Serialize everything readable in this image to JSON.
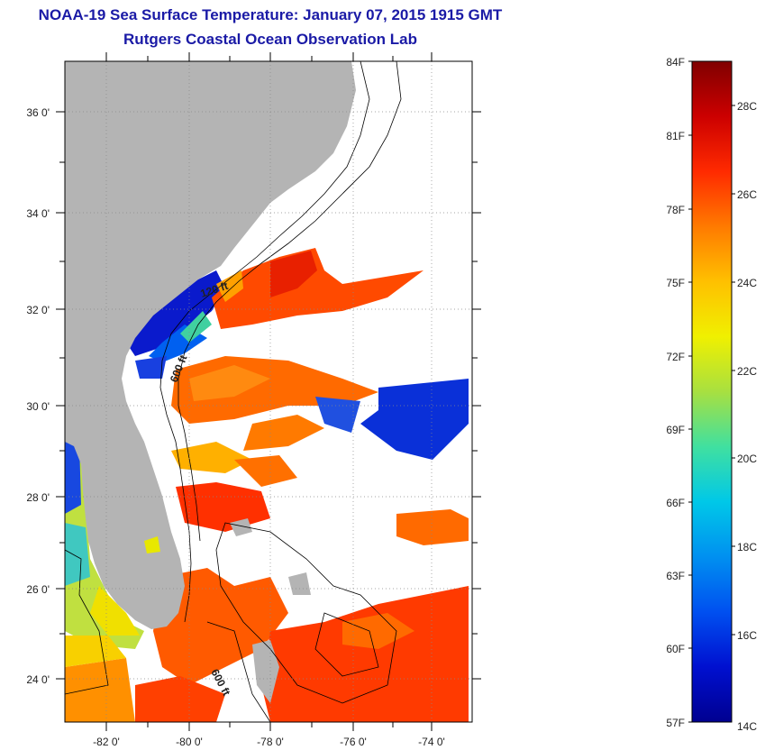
{
  "header": {
    "title": "NOAA-19 Sea Surface Temperature:  January 07, 2015 1915 GMT",
    "subtitle": "Rutgers Coastal Ocean Observation Lab"
  },
  "map": {
    "lat_labels": [
      "36 0'",
      "34 0'",
      "32 0'",
      "30 0'",
      "28 0'",
      "26 0'",
      "24 0'"
    ],
    "lon_labels": [
      "-82 0'",
      "-80 0'",
      "-78 0'",
      "-76 0'",
      "-74 0'"
    ],
    "contour_labels": [
      "120 ft",
      "600 ft",
      "600 ft"
    ],
    "colors": {
      "land": "#b4b4b4",
      "cloud": "#ffffff",
      "graticule": "#888888"
    }
  },
  "colorbar": {
    "fahrenheit": [
      "84F",
      "81F",
      "78F",
      "75F",
      "72F",
      "69F",
      "66F",
      "63F",
      "60F",
      "57F"
    ],
    "celsius": [
      "28C",
      "26C",
      "24C",
      "22C",
      "20C",
      "18C",
      "16C",
      "14C"
    ],
    "stops": [
      "#800000",
      "#cc0000",
      "#ff2a00",
      "#ff7a00",
      "#ffc000",
      "#f0f000",
      "#a8e040",
      "#40e0a0",
      "#00c8e8",
      "#0090f0",
      "#0050f0",
      "#0010d0",
      "#000090"
    ]
  }
}
